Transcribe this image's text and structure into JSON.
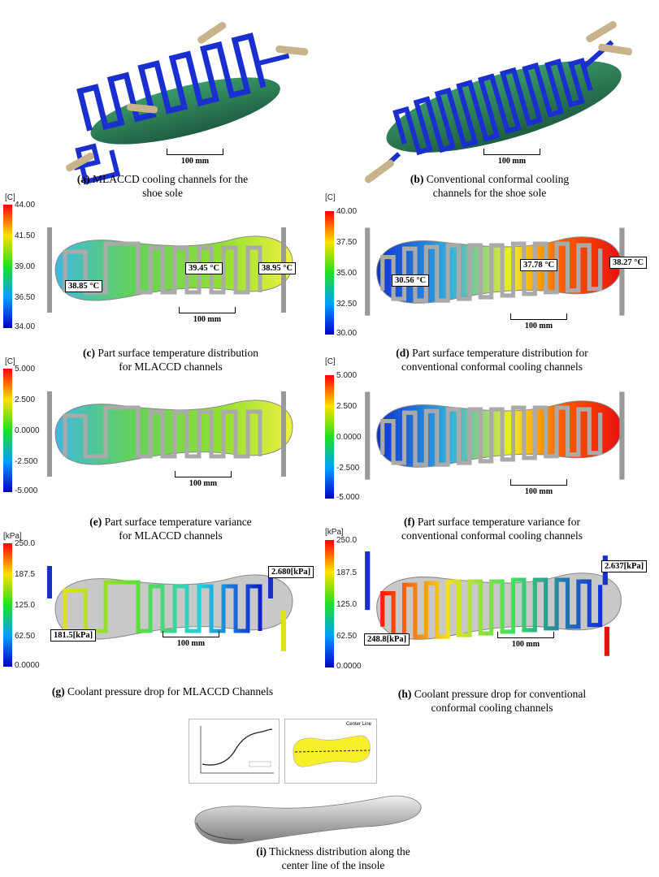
{
  "panels": {
    "a": {
      "letter": "(a)",
      "caption_line1": "MLACCD cooling channels for the",
      "caption_line2": "shoe sole",
      "scale": "100 mm"
    },
    "b": {
      "letter": "(b)",
      "caption_line1": "Conventional conformal cooling",
      "caption_line2": "channels for the shoe sole",
      "scale": "100 mm"
    },
    "c": {
      "letter": "(c)",
      "caption_line1": "Part surface temperature distribution",
      "caption_line2": "for MLACCD channels",
      "unit": "[C]",
      "ticks": [
        "44.00",
        "41.50",
        "39.00",
        "36.50",
        "34.00"
      ],
      "labels": [
        "38.85 °C",
        "39.45 °C",
        "38.95 °C"
      ],
      "scale": "100 mm"
    },
    "d": {
      "letter": "(d)",
      "caption_line1": "Part surface temperature distribution for",
      "caption_line2": "conventional conformal cooling channels",
      "unit": "[C]",
      "ticks": [
        "40.00",
        "37.50",
        "35.00",
        "32.50",
        "30.00"
      ],
      "labels": [
        "30.56 °C",
        "37.78 °C",
        "38.27 °C"
      ],
      "scale": "100 mm"
    },
    "e": {
      "letter": "(e)",
      "caption_line1": "Part surface temperature variance",
      "caption_line2": "for MLACCD channels",
      "unit": "[C]",
      "ticks": [
        "5.000",
        "2.500",
        "0.0000",
        "-2.500",
        "-5.000"
      ],
      "scale": "100 mm"
    },
    "f": {
      "letter": "(f)",
      "caption_line1": "Part surface temperature variance for",
      "caption_line2": "conventional conformal cooling channels",
      "unit": "[C]",
      "ticks": [
        "5.000",
        "2.500",
        "0.0000",
        "-2.500",
        "-5.000"
      ],
      "scale": "100 mm"
    },
    "g": {
      "letter": "(g)",
      "caption_line1": "Coolant pressure drop for MLACCD Channels",
      "unit": "[kPa]",
      "ticks": [
        "250.0",
        "187.5",
        "125.0",
        "62.50",
        "0.0000"
      ],
      "labels": [
        "2.680[kPa]",
        "181.5[kPa]"
      ],
      "scale": "100 mm"
    },
    "h": {
      "letter": "(h)",
      "caption_line1": "Coolant pressure drop for conventional",
      "caption_line2": "conformal cooling channels",
      "unit": "[kPa]",
      "ticks": [
        "250.0",
        "187.5",
        "125.0",
        "62.50",
        "0.0000"
      ],
      "labels": [
        "2.637[kPa]",
        "248.8[kPa]"
      ],
      "scale": "100 mm"
    },
    "i": {
      "letter": "(i)",
      "caption_line1": "Thickness distribution along the",
      "caption_line2": "center line of the insole",
      "legend": "Center Line"
    }
  },
  "colors": {
    "channel": "#1a2fd0",
    "sole": "#2e7d5a",
    "pipe": "#c8b48a",
    "grey": "#c8c8c8"
  }
}
